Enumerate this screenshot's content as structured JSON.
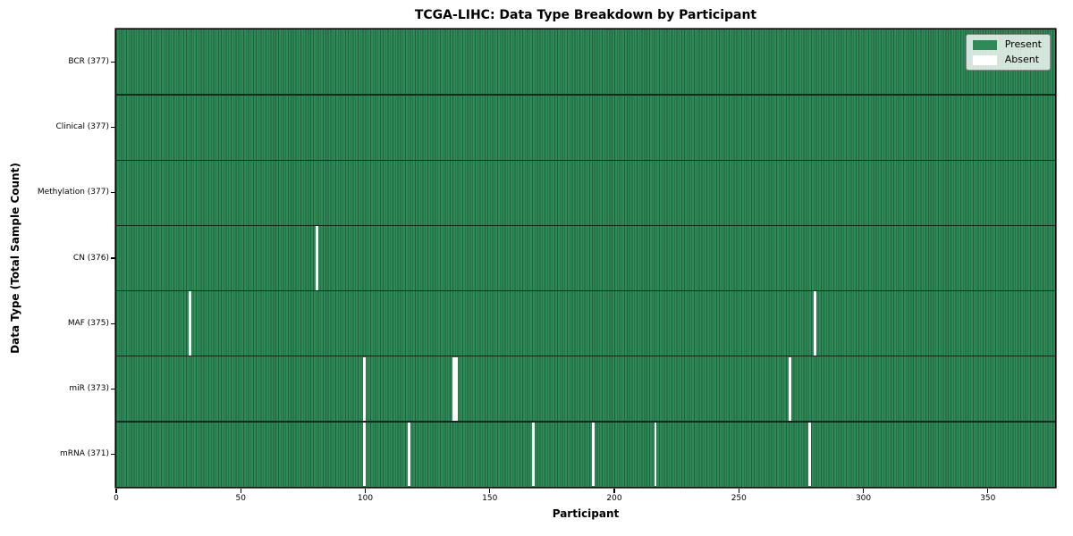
{
  "chart_data": {
    "type": "heatmap",
    "title": "TCGA-LIHC: Data Type Breakdown by Participant",
    "xlabel": "Participant",
    "ylabel": "Data Type (Total Sample Count)",
    "xlim": [
      0,
      377
    ],
    "n_participants": 377,
    "x_ticks": [
      0,
      50,
      100,
      150,
      200,
      250,
      300,
      350
    ],
    "grid": false,
    "rows": [
      {
        "name": "BCR",
        "label": "BCR (377)",
        "total": 377,
        "absent_participants": []
      },
      {
        "name": "Clinical",
        "label": "Clinical (377)",
        "total": 377,
        "absent_participants": []
      },
      {
        "name": "Methylation",
        "label": "Methylation (377)",
        "total": 377,
        "absent_participants": []
      },
      {
        "name": "CN",
        "label": "CN (376)",
        "total": 376,
        "absent_participants": [
          80
        ]
      },
      {
        "name": "MAF",
        "label": "MAF (375)",
        "total": 375,
        "absent_participants": [
          29,
          280
        ]
      },
      {
        "name": "miR",
        "label": "miR (373)",
        "total": 373,
        "absent_participants": [
          99,
          135,
          136,
          270
        ]
      },
      {
        "name": "mRNA",
        "label": "mRNA (371)",
        "total": 371,
        "absent_participants": [
          99,
          117,
          167,
          191,
          216,
          278
        ]
      }
    ],
    "legend": {
      "position": "upper right",
      "entries": [
        {
          "label": "Present",
          "color": "#2e8b57"
        },
        {
          "label": "Absent",
          "color": "#ffffff"
        }
      ]
    },
    "colors": {
      "present": "#2e8b57",
      "absent": "#ffffff",
      "cell_edge": "#20603f",
      "row_border": "#10281a",
      "spine": "#000000"
    }
  }
}
